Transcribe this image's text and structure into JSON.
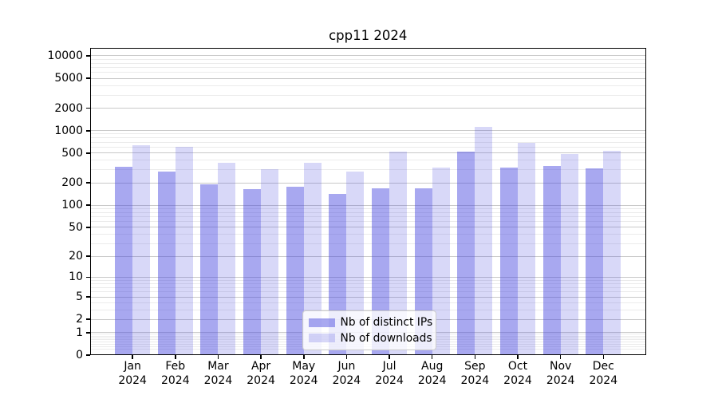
{
  "chart_data": {
    "type": "bar",
    "title": "cpp11 2024",
    "categories": [
      "Jan",
      "Feb",
      "Mar",
      "Apr",
      "May",
      "Jun",
      "Jul",
      "Aug",
      "Sep",
      "Oct",
      "Nov",
      "Dec"
    ],
    "category_year": "2024",
    "series": [
      {
        "name": "Nb of distinct IPs",
        "color": "rgba(70,70,224,0.47)",
        "values": [
          327,
          280,
          190,
          164,
          176,
          143,
          167,
          168,
          530,
          322,
          335,
          311
        ]
      },
      {
        "name": "Nb of downloads",
        "color": "rgba(70,70,224,0.21)",
        "values": [
          643,
          606,
          373,
          303,
          370,
          285,
          519,
          317,
          1132,
          681,
          485,
          535
        ]
      }
    ],
    "y_axis": {
      "scale": "log10(value+1)",
      "tick_labels": [
        "10000",
        "5000",
        "2000",
        "1000",
        "500",
        "200",
        "100",
        "50",
        "20",
        "10",
        "5",
        "2",
        "1",
        "0"
      ],
      "tick_values": [
        10000,
        5000,
        2000,
        1000,
        500,
        200,
        100,
        50,
        20,
        10,
        5,
        2,
        1,
        0
      ],
      "minor_tick_values": [
        0.2,
        0.3,
        0.4,
        0.5,
        0.6,
        0.7,
        0.8,
        0.9,
        3,
        4,
        6,
        7,
        8,
        9,
        30,
        40,
        60,
        70,
        80,
        90,
        300,
        400,
        600,
        700,
        800,
        900,
        3000,
        4000,
        6000,
        7000,
        8000,
        9000
      ],
      "range": [
        0,
        12750
      ],
      "grid": true
    },
    "legend": {
      "position": "lower center",
      "entries": [
        "Nb of distinct IPs",
        "Nb of downloads"
      ]
    },
    "colors": {
      "background": "#ffffff",
      "spine": "#000000",
      "grid_major": "#c9c9c9",
      "grid_minor": "#ebebeb",
      "legend_border": "#cccccc",
      "text": "#000000"
    }
  }
}
